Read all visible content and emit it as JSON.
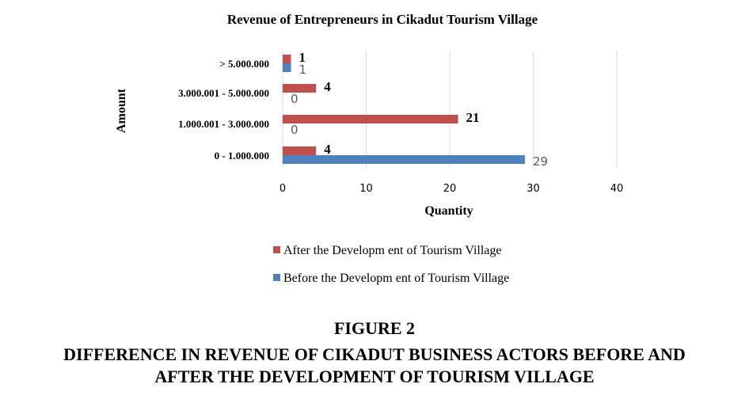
{
  "chart_data": {
    "type": "bar",
    "orientation": "horizontal",
    "title": "Revenue of Entrepreneurs in Cikadut Tourism Village",
    "xlabel": "Quantity",
    "ylabel": "Amount",
    "categories": [
      "0 - 1.000.000",
      "1.000.001 - 3.000.000",
      "3.000.001 - 5.000.000",
      "> 5.000.000"
    ],
    "series": [
      {
        "name": "After the Developm ent of Tourism Village",
        "values": [
          4,
          21,
          4,
          1
        ],
        "color": "#c0504d"
      },
      {
        "name": "Before the Developm ent of Tourism Village",
        "values": [
          29,
          0,
          0,
          1
        ],
        "color": "#4f81bd"
      }
    ],
    "xlim": [
      0,
      40
    ],
    "xticks": [
      0,
      10,
      20,
      30,
      40
    ],
    "grid": true,
    "legend_position": "bottom"
  },
  "figure": {
    "label": "FIGURE 2",
    "caption_line1": "DIFFERENCE IN REVENUE OF CIKADUT BUSINESS ACTORS BEFORE AND",
    "caption_line2": "AFTER THE DEVELOPMENT OF TOURISM VILLAGE"
  }
}
